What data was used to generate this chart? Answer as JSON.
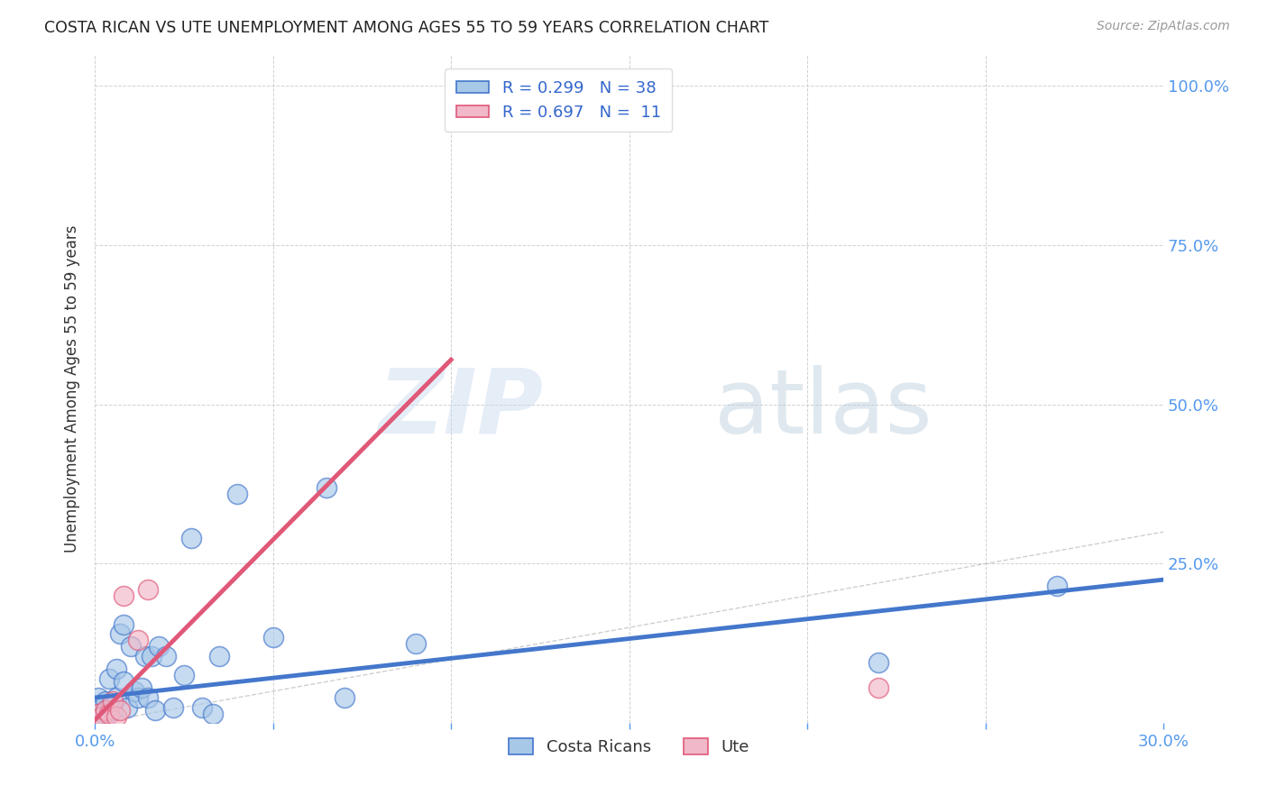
{
  "title": "COSTA RICAN VS UTE UNEMPLOYMENT AMONG AGES 55 TO 59 YEARS CORRELATION CHART",
  "source": "Source: ZipAtlas.com",
  "ylabel": "Unemployment Among Ages 55 to 59 years",
  "xlim": [
    0.0,
    0.3
  ],
  "ylim": [
    0.0,
    1.05
  ],
  "xticks": [
    0.0,
    0.05,
    0.1,
    0.15,
    0.2,
    0.25,
    0.3
  ],
  "yticks": [
    0.0,
    0.25,
    0.5,
    0.75,
    1.0
  ],
  "blue_color": "#a8c8e8",
  "blue_line_color": "#4477cc",
  "pink_color": "#f0b8c8",
  "pink_line_color": "#e05878",
  "diag_color": "#bbbbbb",
  "legend_R1": "0.299",
  "legend_N1": "38",
  "legend_R2": "0.697",
  "legend_N2": "11",
  "watermark_zip": "ZIP",
  "watermark_atlas": "atlas",
  "costa_rican_x": [
    0.001,
    0.001,
    0.002,
    0.002,
    0.003,
    0.003,
    0.004,
    0.004,
    0.005,
    0.006,
    0.006,
    0.007,
    0.008,
    0.008,
    0.009,
    0.01,
    0.011,
    0.012,
    0.013,
    0.014,
    0.015,
    0.016,
    0.017,
    0.018,
    0.02,
    0.022,
    0.025,
    0.027,
    0.03,
    0.033,
    0.035,
    0.04,
    0.05,
    0.065,
    0.07,
    0.09,
    0.22,
    0.27
  ],
  "costa_rican_y": [
    0.02,
    0.04,
    0.01,
    0.025,
    0.015,
    0.035,
    0.025,
    0.07,
    0.02,
    0.04,
    0.085,
    0.14,
    0.155,
    0.065,
    0.025,
    0.12,
    0.05,
    0.04,
    0.055,
    0.105,
    0.04,
    0.105,
    0.02,
    0.12,
    0.105,
    0.025,
    0.075,
    0.29,
    0.025,
    0.015,
    0.105,
    0.36,
    0.135,
    0.37,
    0.04,
    0.125,
    0.095,
    0.215
  ],
  "ute_x": [
    0.001,
    0.002,
    0.003,
    0.004,
    0.005,
    0.006,
    0.007,
    0.008,
    0.012,
    0.015,
    0.22
  ],
  "ute_y": [
    0.015,
    0.01,
    0.02,
    0.015,
    0.035,
    0.01,
    0.02,
    0.2,
    0.13,
    0.21,
    0.055
  ],
  "blue_trendline_x": [
    0.0,
    0.3
  ],
  "blue_trendline_y": [
    0.04,
    0.225
  ],
  "pink_trendline_x": [
    0.0,
    0.1
  ],
  "pink_trendline_y": [
    0.005,
    0.57
  ],
  "bg_color": "#ffffff",
  "title_color": "#222222",
  "axis_label_color": "#333333",
  "right_tick_color": "#5599ee",
  "bottom_tick_color": "#5599ee",
  "grid_color": "#cccccc",
  "legend_text_color": "#3366cc"
}
